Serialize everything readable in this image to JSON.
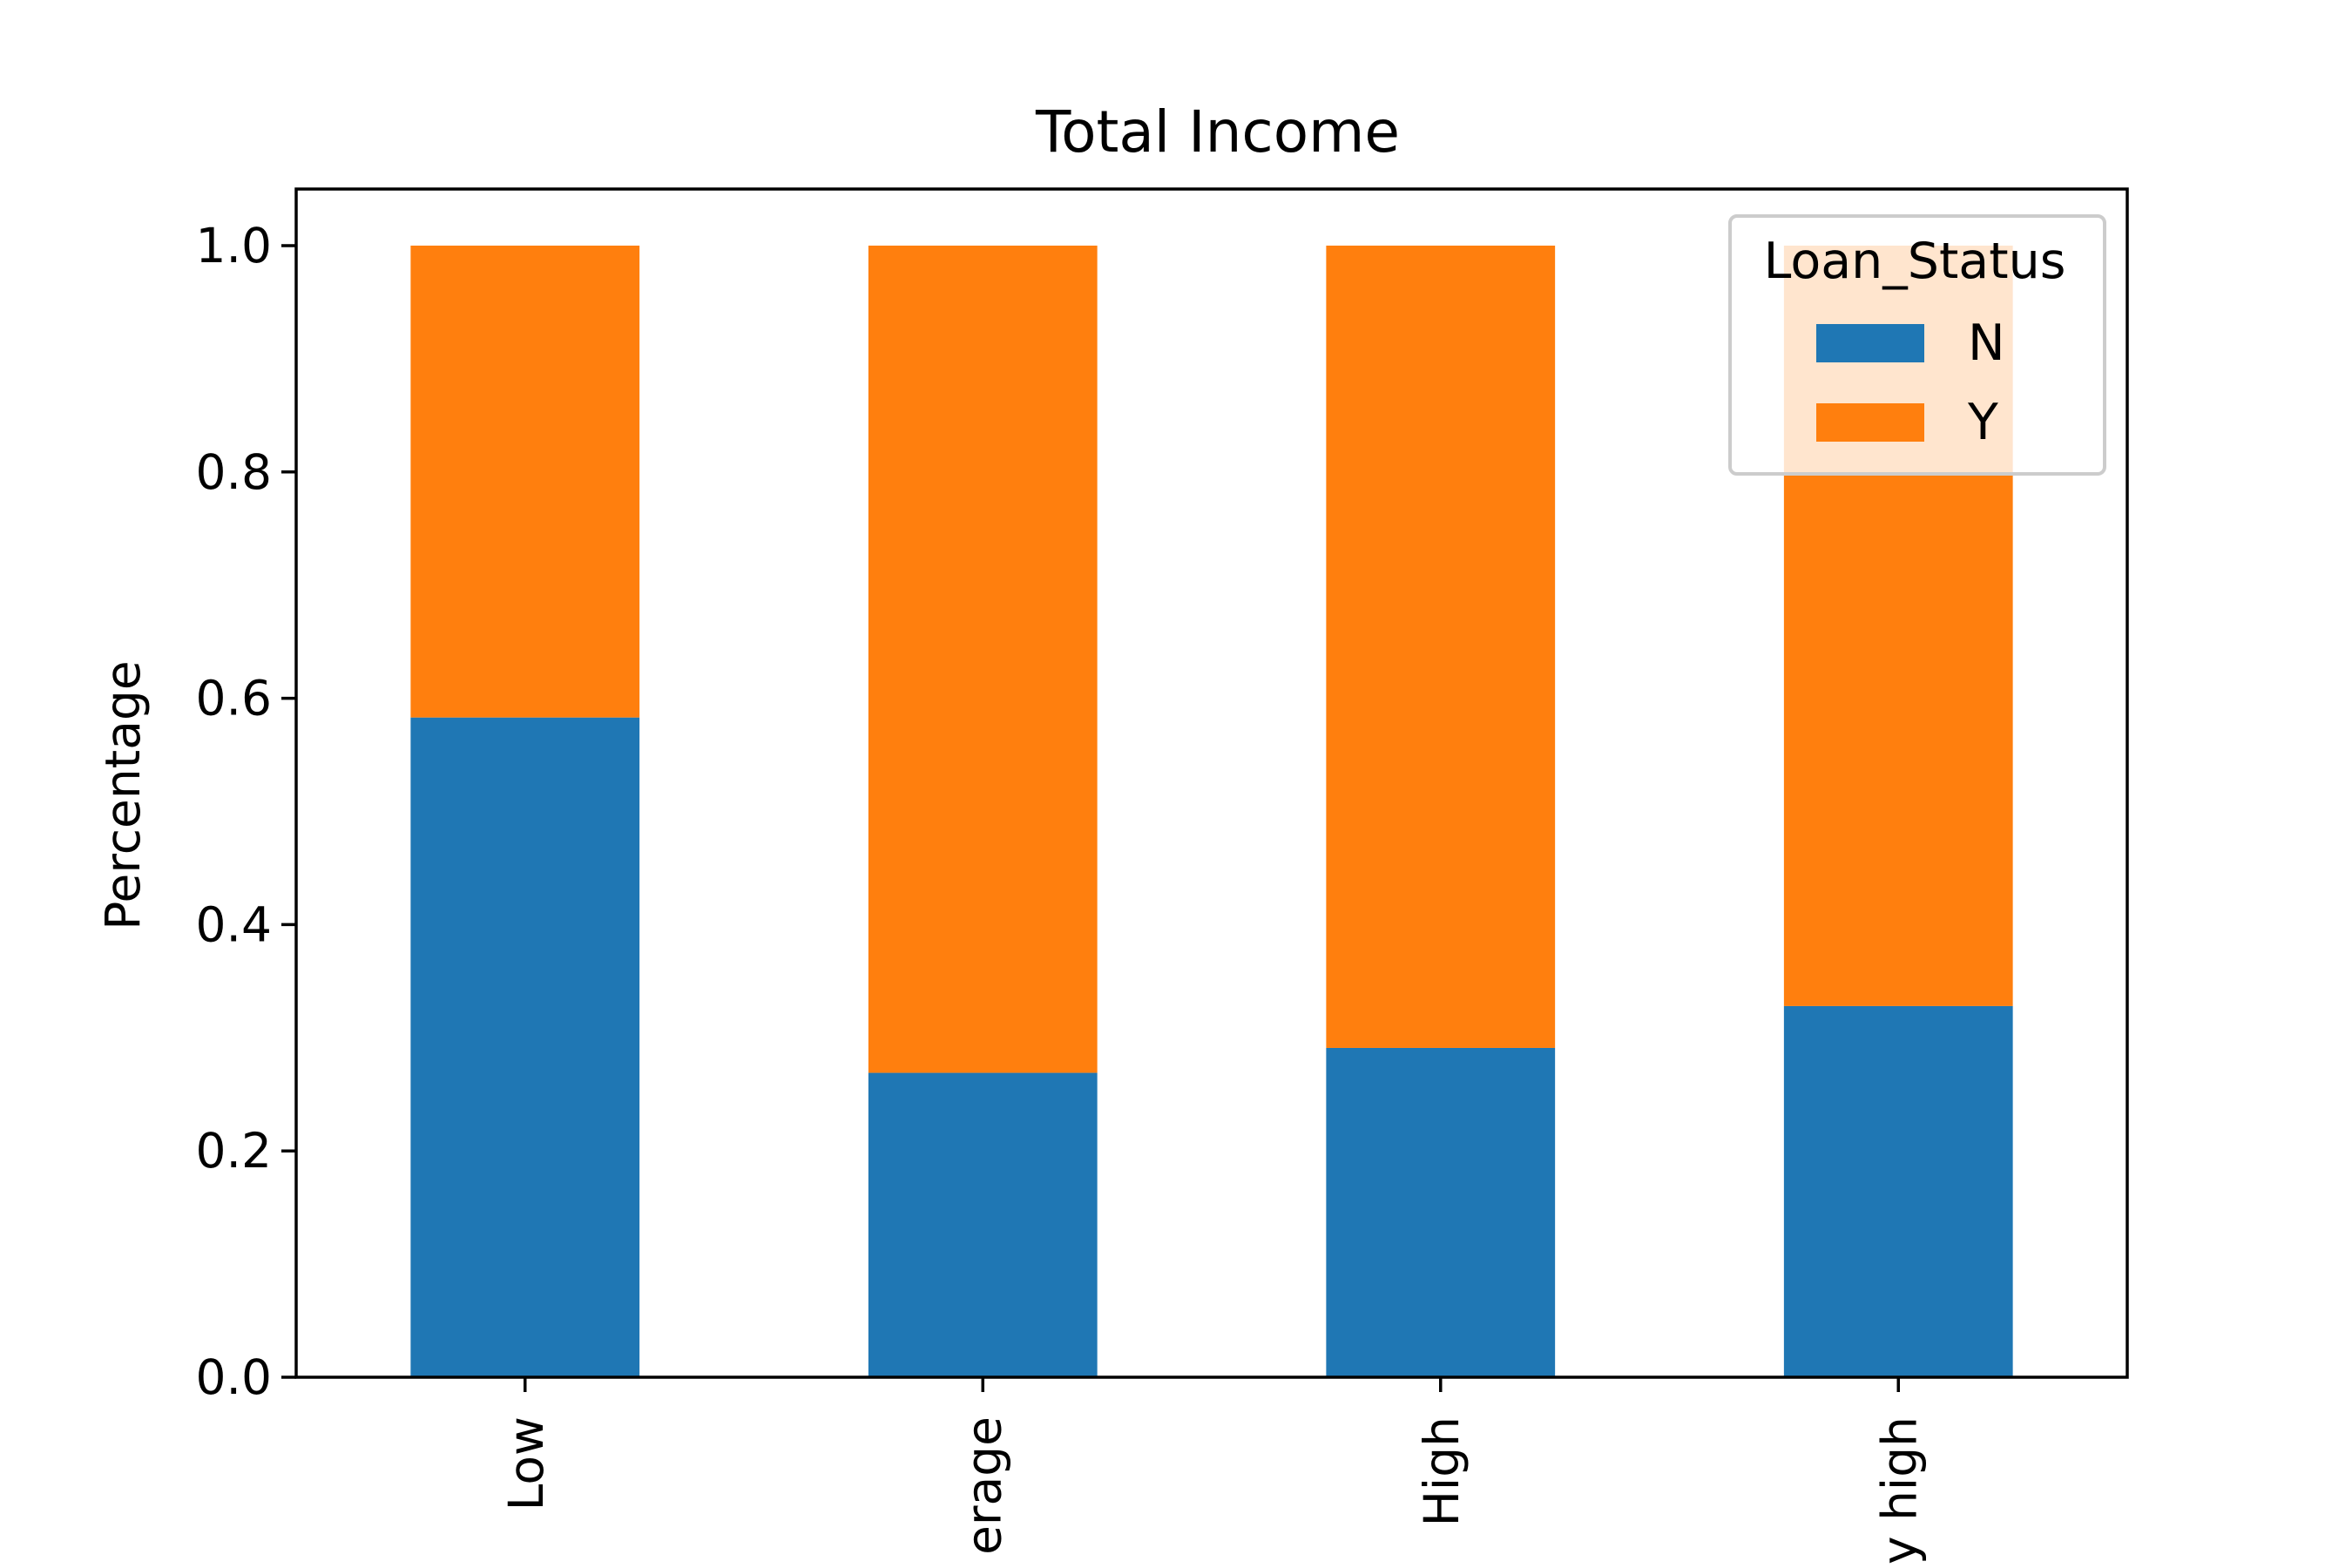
{
  "chart_data": {
    "type": "bar",
    "stacked": true,
    "title": "Total Income",
    "xlabel": "",
    "ylabel": "Percentage",
    "categories": [
      "Low",
      "Average",
      "High",
      "Very high"
    ],
    "visible_tick_text": [
      "Low",
      "erage",
      "High",
      "y high"
    ],
    "series": [
      {
        "name": "N",
        "color": "#1f77b4",
        "values": [
          0.583,
          0.269,
          0.291,
          0.328
        ]
      },
      {
        "name": "Y",
        "color": "#ff7f0e",
        "values": [
          0.417,
          0.731,
          0.709,
          0.672
        ]
      }
    ],
    "ylim": [
      0.0,
      1.05
    ],
    "yticks": [
      "0.0",
      "0.2",
      "0.4",
      "0.6",
      "0.8",
      "1.0"
    ],
    "grid": false,
    "legend": {
      "title": "Loan_Status",
      "position": "upper right"
    }
  }
}
